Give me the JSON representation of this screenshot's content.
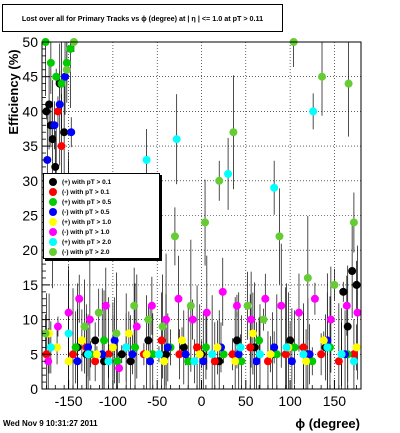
{
  "title": "Lost over all for Primary Tracks vs ϕ (degree) at | η | <= 1.0 at pT > 0.11",
  "footer": "Wed Nov  9 10:31:27 2011",
  "chart_data": {
    "type": "scatter",
    "xlabel": "ϕ (degree)",
    "ylabel": "Efficiency (%)",
    "xlim": [
      -180,
      180
    ],
    "ylim": [
      0,
      50
    ],
    "xticks": [
      -150,
      -100,
      -50,
      0,
      50,
      100,
      150
    ],
    "yticks": [
      0,
      5,
      10,
      15,
      20,
      25,
      30,
      35,
      40,
      45,
      50
    ],
    "grid": true,
    "legend_position": "center-left",
    "series": [
      {
        "name": "(+) with pT > 0.1",
        "color": "#000000",
        "points": [
          [
            -175,
            40
          ],
          [
            -172,
            41
          ],
          [
            -170,
            38
          ],
          [
            -168,
            36
          ],
          [
            -165,
            32
          ],
          [
            -160,
            44
          ],
          [
            -155,
            37
          ],
          [
            -150,
            29
          ],
          [
            -140,
            6
          ],
          [
            -130,
            5
          ],
          [
            -120,
            7
          ],
          [
            -110,
            4
          ],
          [
            -100,
            6
          ],
          [
            -90,
            5
          ],
          [
            -80,
            4
          ],
          [
            -60,
            7
          ],
          [
            -40,
            5
          ],
          [
            -20,
            6
          ],
          [
            0,
            5
          ],
          [
            20,
            4
          ],
          [
            40,
            7
          ],
          [
            60,
            6
          ],
          [
            80,
            5
          ],
          [
            100,
            7
          ],
          [
            120,
            5
          ],
          [
            140,
            6
          ],
          [
            160,
            14
          ],
          [
            170,
            17
          ],
          [
            175,
            15
          ],
          [
            165,
            9
          ]
        ]
      },
      {
        "name": "(-) with pT > 0.1",
        "color": "#ff0000",
        "points": [
          [
            -175,
            5
          ],
          [
            -168,
            20
          ],
          [
            -162,
            40
          ],
          [
            -158,
            35
          ],
          [
            -150,
            30
          ],
          [
            -145,
            5
          ],
          [
            -130,
            6
          ],
          [
            -120,
            4
          ],
          [
            -105,
            5
          ],
          [
            -85,
            6
          ],
          [
            -65,
            5
          ],
          [
            -45,
            7
          ],
          [
            -25,
            5
          ],
          [
            -5,
            6
          ],
          [
            15,
            4
          ],
          [
            35,
            5
          ],
          [
            55,
            6
          ],
          [
            75,
            4
          ],
          [
            95,
            5
          ],
          [
            115,
            6
          ],
          [
            135,
            5
          ],
          [
            155,
            4
          ],
          [
            172,
            5
          ]
        ]
      },
      {
        "name": "(+) with pT > 0.5",
        "color": "#00cc00",
        "points": [
          [
            -176,
            50
          ],
          [
            -170,
            47
          ],
          [
            -164,
            45
          ],
          [
            -158,
            44
          ],
          [
            -152,
            47
          ],
          [
            -148,
            49
          ],
          [
            -142,
            6
          ],
          [
            -125,
            5
          ],
          [
            -110,
            7
          ],
          [
            -95,
            4
          ],
          [
            -75,
            6
          ],
          [
            -55,
            5
          ],
          [
            -35,
            6
          ],
          [
            -15,
            4
          ],
          [
            5,
            6
          ],
          [
            25,
            5
          ],
          [
            45,
            4
          ],
          [
            65,
            7
          ],
          [
            85,
            5
          ],
          [
            105,
            6
          ],
          [
            125,
            4
          ],
          [
            145,
            6
          ],
          [
            165,
            5
          ]
        ]
      },
      {
        "name": "(-) with pT > 0.5",
        "color": "#0000ff",
        "points": [
          [
            -174,
            33
          ],
          [
            -166,
            38
          ],
          [
            -160,
            41
          ],
          [
            -154,
            45
          ],
          [
            -147,
            37
          ],
          [
            -140,
            4
          ],
          [
            -128,
            6
          ],
          [
            -112,
            5
          ],
          [
            -98,
            7
          ],
          [
            -78,
            5
          ],
          [
            -58,
            4
          ],
          [
            -38,
            6
          ],
          [
            -18,
            5
          ],
          [
            2,
            4
          ],
          [
            22,
            6
          ],
          [
            42,
            5
          ],
          [
            62,
            4
          ],
          [
            82,
            6
          ],
          [
            102,
            4
          ],
          [
            122,
            5
          ],
          [
            142,
            7
          ],
          [
            162,
            5
          ]
        ]
      },
      {
        "name": "(+) with pT > 1.0",
        "color": "#ffff00",
        "points": [
          [
            -172,
            8
          ],
          [
            -163,
            6
          ],
          [
            -150,
            4
          ],
          [
            -135,
            7
          ],
          [
            -118,
            5
          ],
          [
            -100,
            6
          ],
          [
            -82,
            8
          ],
          [
            -62,
            5
          ],
          [
            -42,
            4
          ],
          [
            -22,
            7
          ],
          [
            -2,
            5
          ],
          [
            18,
            6
          ],
          [
            38,
            4
          ],
          [
            58,
            8
          ],
          [
            78,
            5
          ],
          [
            98,
            6
          ],
          [
            118,
            4
          ],
          [
            138,
            7
          ],
          [
            158,
            5
          ],
          [
            175,
            6
          ]
        ]
      },
      {
        "name": "(-) with pT > 1.0",
        "color": "#ff00ff",
        "points": [
          [
            -173,
            4
          ],
          [
            -162,
            9
          ],
          [
            -150,
            11
          ],
          [
            -138,
            13
          ],
          [
            -126,
            10
          ],
          [
            -108,
            12
          ],
          [
            -93,
            3
          ],
          [
            -73,
            9
          ],
          [
            -56,
            12
          ],
          [
            -40,
            10
          ],
          [
            -26,
            13
          ],
          [
            -10,
            10
          ],
          [
            6,
            11
          ],
          [
            24,
            14
          ],
          [
            40,
            12
          ],
          [
            56,
            10
          ],
          [
            72,
            13
          ],
          [
            90,
            12
          ],
          [
            110,
            11
          ],
          [
            128,
            13
          ],
          [
            146,
            10
          ],
          [
            164,
            12
          ],
          [
            176,
            11
          ]
        ]
      },
      {
        "name": "(+) with pT > 2.0",
        "color": "#00ffff",
        "points": [
          [
            -170,
            6
          ],
          [
            -150,
            8
          ],
          [
            -128,
            5
          ],
          [
            -105,
            4
          ],
          [
            -85,
            6
          ],
          [
            -62,
            33
          ],
          [
            -48,
            5
          ],
          [
            -28,
            36
          ],
          [
            -8,
            4
          ],
          [
            12,
            5
          ],
          [
            30,
            31
          ],
          [
            44,
            6
          ],
          [
            66,
            5
          ],
          [
            82,
            29
          ],
          [
            96,
            6
          ],
          [
            115,
            5
          ],
          [
            126,
            40
          ],
          [
            142,
            6
          ],
          [
            158,
            5
          ],
          [
            172,
            4
          ]
        ]
      },
      {
        "name": "(-) with pT > 2.0",
        "color": "#66cc33",
        "points": [
          [
            -176,
            8
          ],
          [
            -164,
            30
          ],
          [
            -152,
            46
          ],
          [
            -144,
            50
          ],
          [
            -132,
            9
          ],
          [
            -116,
            11
          ],
          [
            -96,
            8
          ],
          [
            -76,
            12
          ],
          [
            -60,
            10
          ],
          [
            -44,
            9
          ],
          [
            -30,
            22
          ],
          [
            -12,
            12
          ],
          [
            4,
            24
          ],
          [
            20,
            30
          ],
          [
            36,
            37
          ],
          [
            52,
            12
          ],
          [
            70,
            10
          ],
          [
            88,
            22
          ],
          [
            104,
            50
          ],
          [
            120,
            16
          ],
          [
            136,
            45
          ],
          [
            150,
            15
          ],
          [
            166,
            44
          ],
          [
            172,
            24
          ]
        ]
      }
    ]
  }
}
